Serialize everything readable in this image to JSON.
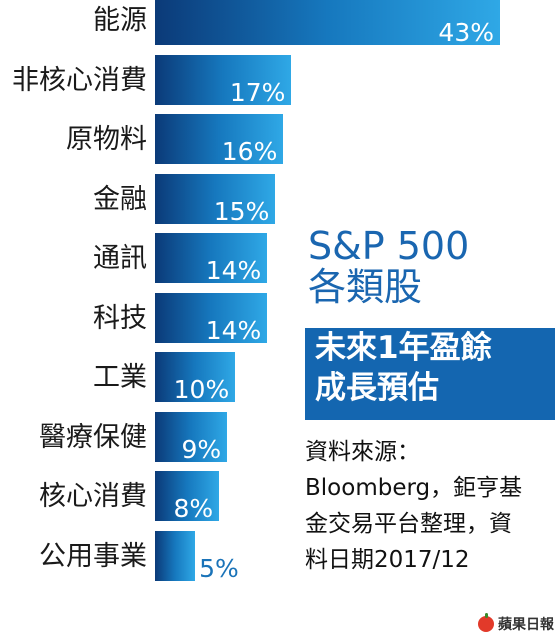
{
  "chart_data": {
    "type": "bar",
    "orientation": "horizontal",
    "categories": [
      "能源",
      "非核心消費",
      "原物料",
      "金融",
      "通訊",
      "科技",
      "工業",
      "醫療保健",
      "核心消費",
      "公用事業"
    ],
    "values": [
      43,
      17,
      16,
      15,
      14,
      14,
      10,
      9,
      8,
      5
    ],
    "value_labels": [
      "43%",
      "17%",
      "16%",
      "15%",
      "14%",
      "14%",
      "10%",
      "9%",
      "8%",
      "5%"
    ],
    "unit": "%",
    "xlim": [
      0,
      45
    ],
    "grid": false,
    "legend": "none"
  },
  "heading": {
    "line1": "S&P 500",
    "line2": "各類股",
    "box_line1": "未來1年盈餘",
    "box_line2": "成長預估"
  },
  "source_note": {
    "line1": "資料來源：",
    "line2": "Bloomberg，鉅亨基",
    "line3": "金交易平台整理，資",
    "line4": "料日期2017/12"
  },
  "logo": {
    "text": "蘋果日報"
  },
  "colors": {
    "bar_dark": "#0b3a78",
    "bar_light": "#2fa8e6",
    "box": "#1466b0",
    "title_blue": "#1a66b0"
  }
}
